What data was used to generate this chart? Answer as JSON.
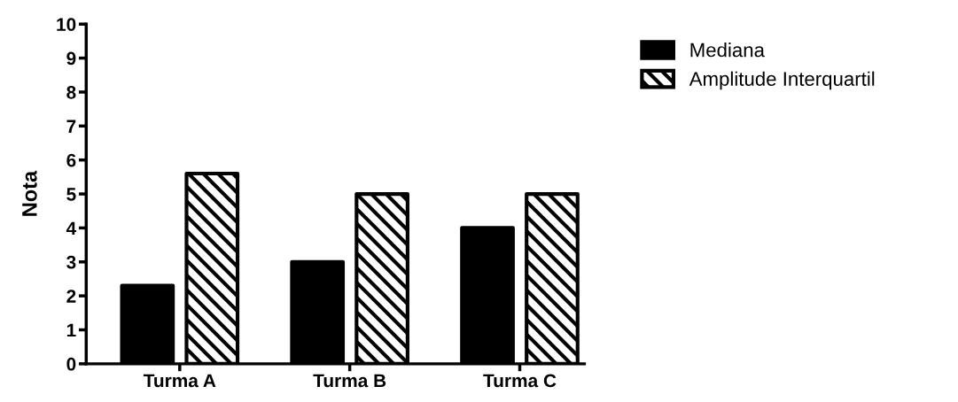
{
  "chart_data": {
    "type": "bar",
    "ylabel": "Nota",
    "categories": [
      "Turma A",
      "Turma B",
      "Turma C"
    ],
    "series": [
      {
        "name": "Mediana",
        "color": "#000000",
        "values": [
          2.3,
          3,
          4
        ]
      },
      {
        "name": "Amplitude Interquartil",
        "color": "#000000",
        "values": [
          5.6,
          5,
          5
        ]
      }
    ],
    "ylim": [
      0,
      10
    ],
    "yticks": [
      0,
      1,
      2,
      3,
      4,
      5,
      6,
      7,
      8,
      9,
      10
    ],
    "grid": false,
    "legend": "top right"
  }
}
